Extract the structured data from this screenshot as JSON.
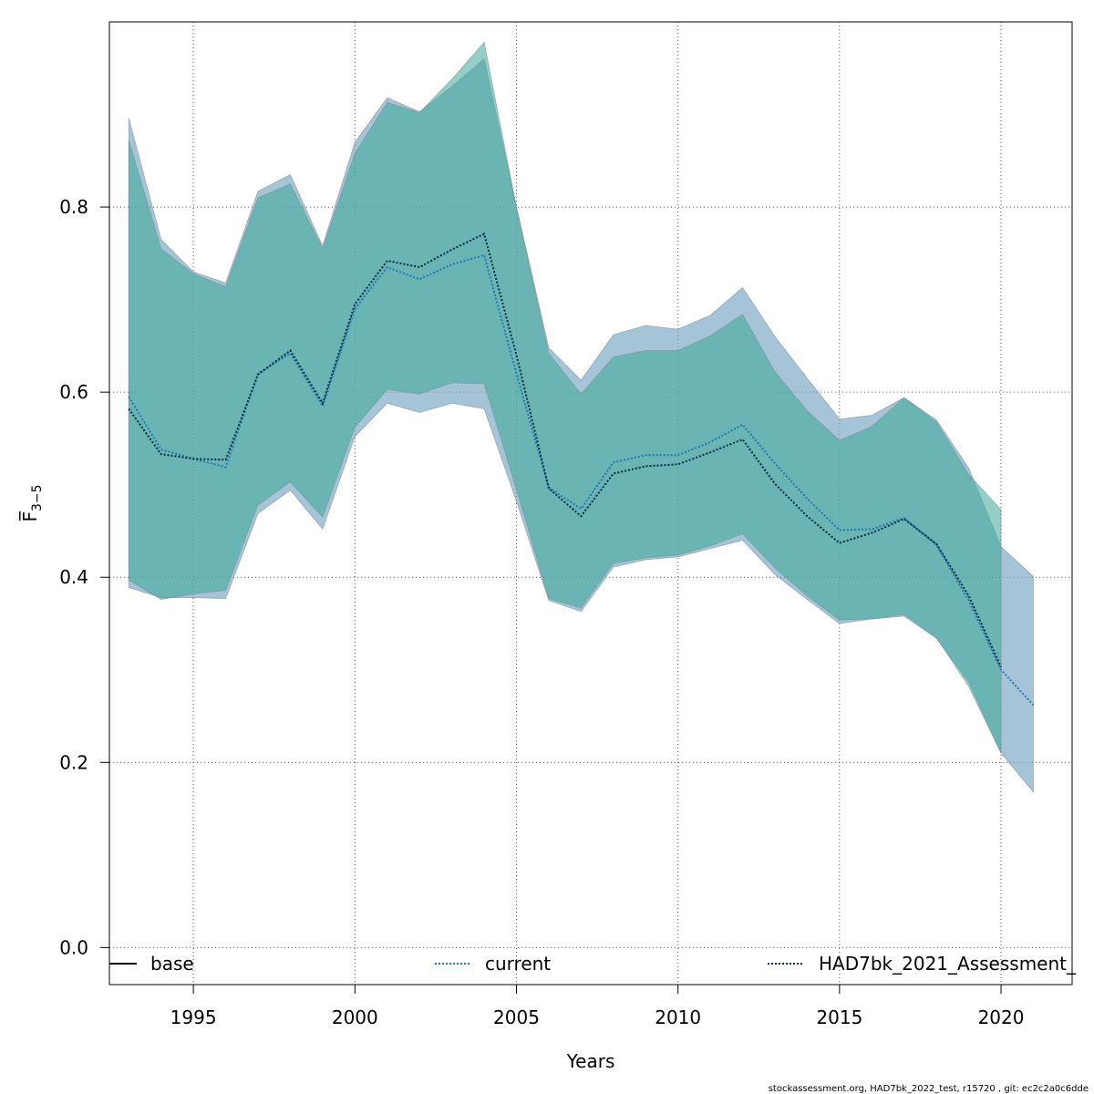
{
  "chart_data": {
    "type": "area",
    "xlabel": "Years",
    "ylabel": "F̅",
    "ylabel_subscript": "3−5",
    "xlim": [
      1992.4,
      2022.2
    ],
    "ylim": [
      -0.04,
      1.0
    ],
    "x_ticks": [
      1995,
      2000,
      2005,
      2010,
      2015,
      2020
    ],
    "y_ticks": [
      0.0,
      0.2,
      0.4,
      0.6,
      0.8
    ],
    "x_tick_labels": [
      "1995",
      "2000",
      "2005",
      "2010",
      "2015",
      "2020"
    ],
    "y_tick_labels": [
      "0.0",
      "0.2",
      "0.4",
      "0.6",
      "0.8"
    ],
    "grid": true,
    "legend_position": "bottom",
    "series": [
      {
        "name": "current",
        "line_color": "#1f77b4",
        "band_color": "#6e9fbf",
        "line_style": "dotted",
        "x": [
          1993,
          1994,
          1995,
          1996,
          1997,
          1998,
          1999,
          2000,
          2001,
          2002,
          2003,
          2004,
          2005,
          2006,
          2007,
          2008,
          2009,
          2010,
          2011,
          2012,
          2013,
          2014,
          2015,
          2016,
          2017,
          2018,
          2019,
          2020,
          2021
        ],
        "values": [
          0.595,
          0.538,
          0.528,
          0.519,
          0.62,
          0.642,
          0.585,
          0.69,
          0.735,
          0.722,
          0.738,
          0.748,
          0.62,
          0.497,
          0.474,
          0.524,
          0.532,
          0.532,
          0.546,
          0.565,
          0.523,
          0.485,
          0.451,
          0.452,
          0.464,
          0.435,
          0.375,
          0.3,
          0.262
        ],
        "lower": [
          0.389,
          0.378,
          0.378,
          0.377,
          0.469,
          0.494,
          0.452,
          0.552,
          0.588,
          0.578,
          0.588,
          0.582,
          0.482,
          0.375,
          0.363,
          0.411,
          0.419,
          0.422,
          0.431,
          0.44,
          0.403,
          0.376,
          0.35,
          0.355,
          0.358,
          0.334,
          0.287,
          0.21,
          0.168
        ],
        "upper": [
          0.896,
          0.765,
          0.73,
          0.718,
          0.817,
          0.835,
          0.758,
          0.87,
          0.918,
          0.903,
          0.93,
          0.96,
          0.8,
          0.648,
          0.613,
          0.662,
          0.672,
          0.668,
          0.683,
          0.713,
          0.66,
          0.615,
          0.571,
          0.575,
          0.594,
          0.57,
          0.518,
          0.433,
          0.401
        ]
      },
      {
        "name": "HAD7bk_2021_Assessment_",
        "line_color": "#002b3d",
        "band_color": "#3aa897",
        "line_style": "dotted",
        "x": [
          1993,
          1994,
          1995,
          1996,
          1997,
          1998,
          1999,
          2000,
          2001,
          2002,
          2003,
          2004,
          2005,
          2006,
          2007,
          2008,
          2009,
          2010,
          2011,
          2012,
          2013,
          2014,
          2015,
          2016,
          2017,
          2018,
          2019,
          2020
        ],
        "values": [
          0.582,
          0.533,
          0.528,
          0.527,
          0.619,
          0.645,
          0.588,
          0.695,
          0.742,
          0.735,
          0.754,
          0.771,
          0.64,
          0.496,
          0.466,
          0.512,
          0.52,
          0.522,
          0.535,
          0.549,
          0.501,
          0.466,
          0.437,
          0.448,
          0.463,
          0.436,
          0.38,
          0.303
        ],
        "lower": [
          0.397,
          0.376,
          0.382,
          0.386,
          0.478,
          0.503,
          0.465,
          0.562,
          0.603,
          0.598,
          0.61,
          0.609,
          0.495,
          0.377,
          0.367,
          0.415,
          0.421,
          0.424,
          0.434,
          0.447,
          0.41,
          0.38,
          0.354,
          0.355,
          0.36,
          0.335,
          0.282,
          0.21
        ],
        "upper": [
          0.872,
          0.755,
          0.728,
          0.714,
          0.81,
          0.825,
          0.755,
          0.858,
          0.913,
          0.902,
          0.938,
          0.978,
          0.8,
          0.642,
          0.598,
          0.638,
          0.645,
          0.645,
          0.661,
          0.684,
          0.622,
          0.58,
          0.548,
          0.563,
          0.594,
          0.568,
          0.511,
          0.473
        ]
      },
      {
        "name": "base",
        "line_color": "#000000",
        "line_style": "solid"
      }
    ]
  },
  "legend": {
    "items": [
      {
        "label": "base"
      },
      {
        "label": "current"
      },
      {
        "label": "HAD7bk_2021_Assessment_"
      }
    ]
  },
  "footer": "stockassessment.org, HAD7bk_2022_test, r15720 , git: ec2c2a0c6dde"
}
